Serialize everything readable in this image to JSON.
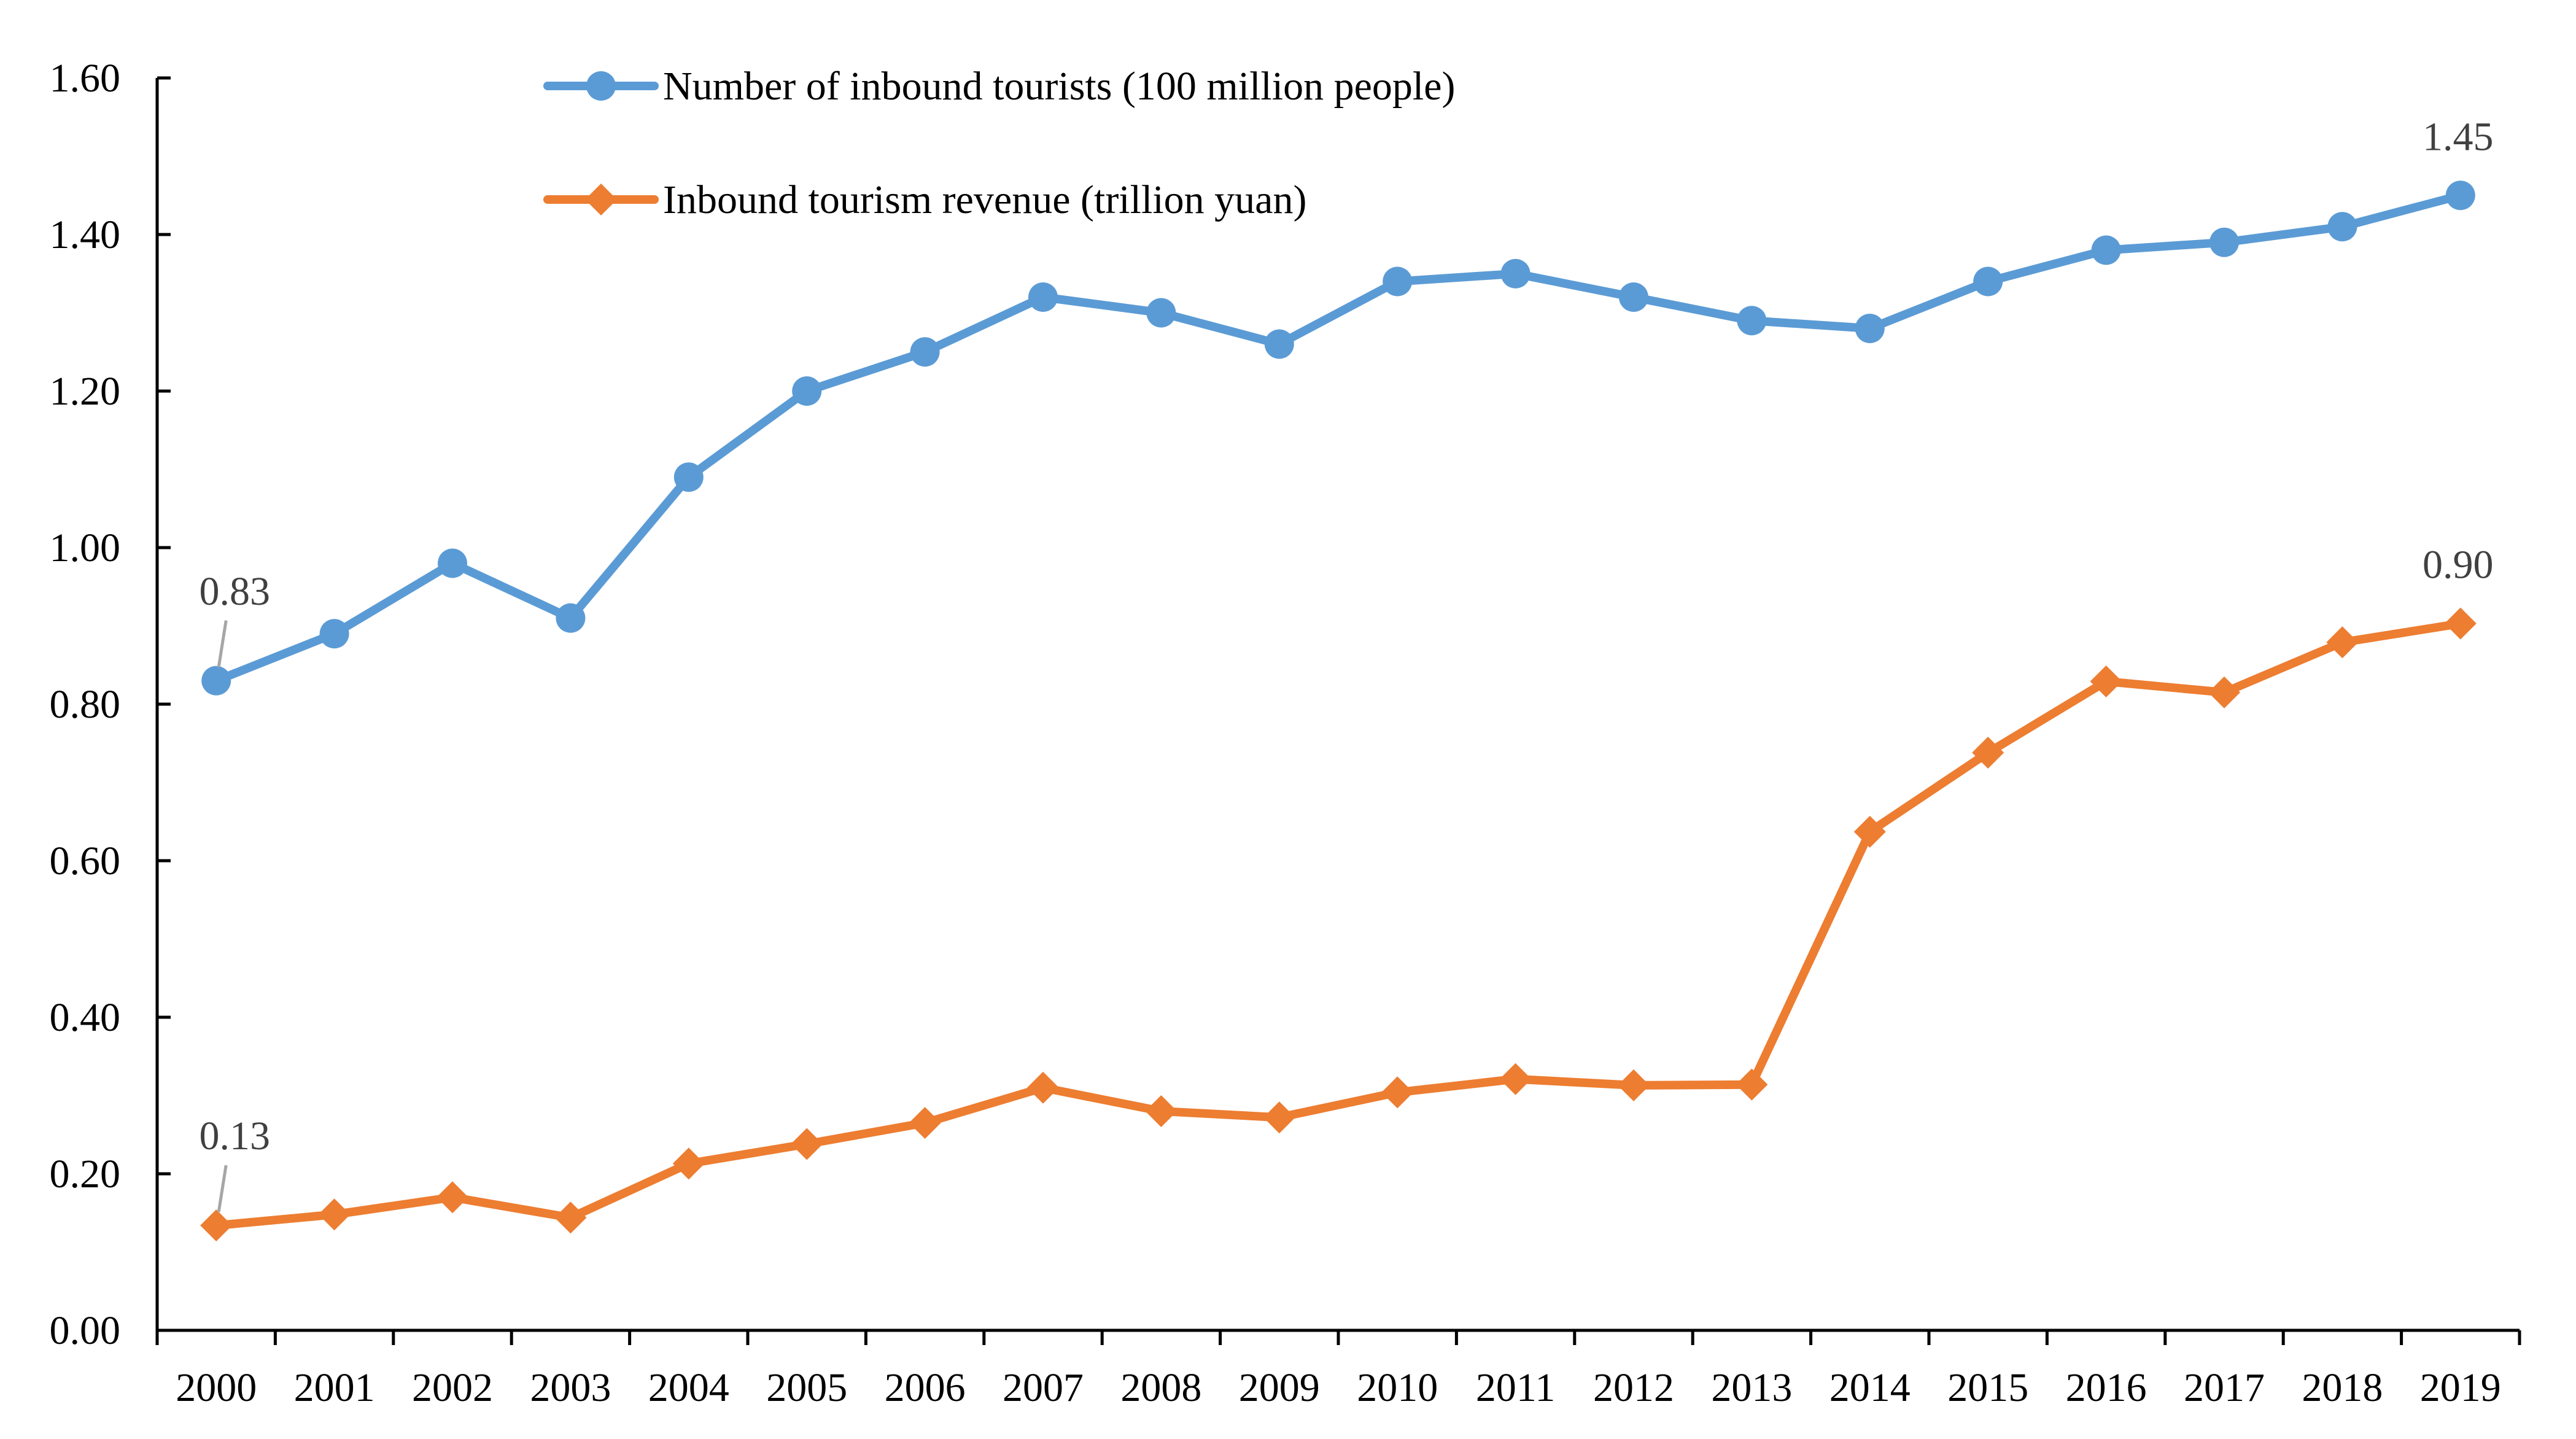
{
  "chart_data": {
    "type": "line",
    "title": "",
    "xlabel": "",
    "ylabel": "",
    "ylim": [
      0,
      1.6
    ],
    "yticks": [
      0.0,
      0.2,
      0.4,
      0.6,
      0.8,
      1.0,
      1.2,
      1.4,
      1.6
    ],
    "ytick_labels": [
      "0.00",
      "0.20",
      "0.40",
      "0.60",
      "0.80",
      "1.00",
      "1.20",
      "1.40",
      "1.60"
    ],
    "categories": [
      "2000",
      "2001",
      "2002",
      "2003",
      "2004",
      "2005",
      "2006",
      "2007",
      "2008",
      "2009",
      "2010",
      "2011",
      "2012",
      "2013",
      "2014",
      "2015",
      "2016",
      "2017",
      "2018",
      "2019"
    ],
    "grid": false,
    "legend_position": "top-center",
    "series": [
      {
        "name": "Number of inbound tourists (100 million people)",
        "color": "#5B9BD5",
        "marker": "circle",
        "values": [
          0.83,
          0.89,
          0.98,
          0.91,
          1.09,
          1.2,
          1.25,
          1.32,
          1.3,
          1.26,
          1.34,
          1.35,
          1.32,
          1.29,
          1.28,
          1.34,
          1.38,
          1.39,
          1.41,
          1.45
        ],
        "annotations": [
          {
            "index": 0,
            "text": "0.83",
            "leader": true
          },
          {
            "index": 19,
            "text": "1.45",
            "leader": false
          }
        ]
      },
      {
        "name": "Inbound tourism revenue (trillion yuan)",
        "color": "#ED7D31",
        "marker": "diamond",
        "values": [
          0.134,
          0.148,
          0.17,
          0.144,
          0.213,
          0.238,
          0.265,
          0.31,
          0.28,
          0.272,
          0.304,
          0.321,
          0.313,
          0.314,
          0.637,
          0.738,
          0.829,
          0.815,
          0.879,
          0.903
        ],
        "annotations": [
          {
            "index": 0,
            "text": "0.13",
            "leader": true
          },
          {
            "index": 19,
            "text": "0.90",
            "leader": false
          }
        ]
      }
    ]
  }
}
